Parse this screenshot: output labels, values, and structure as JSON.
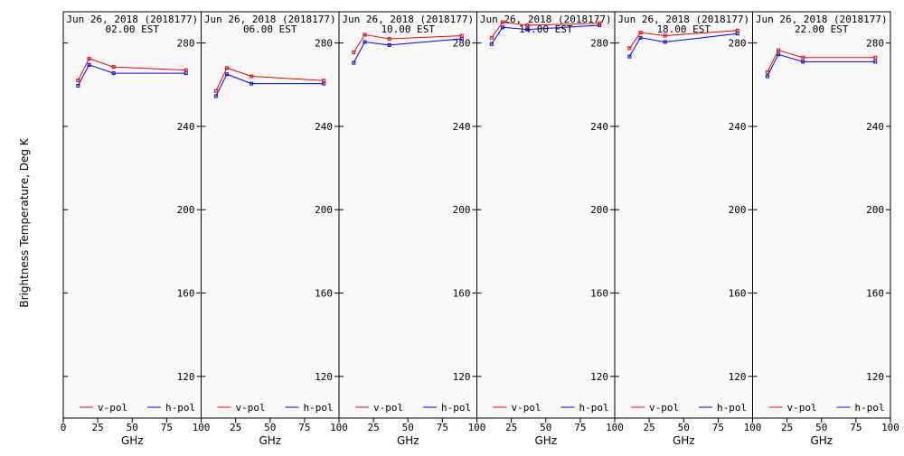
{
  "chart_data": {
    "type": "line",
    "ylabel": "Brightness Temperature, Deg K",
    "xlabel": "GHz",
    "xlim": [
      0,
      100
    ],
    "ylim": [
      100,
      295
    ],
    "xticks": [
      0,
      25,
      50,
      75,
      100
    ],
    "yticks": [
      120,
      160,
      200,
      240,
      280
    ],
    "x_tick_labels": [
      "0",
      "25",
      "50",
      "75",
      "100"
    ],
    "y_tick_labels": [
      "120",
      "160",
      "200",
      "240",
      "280"
    ],
    "legend_placement": "bottom",
    "colors": {
      "v-pol": "#ff0000",
      "h-pol": "#0000ff",
      "background": "#fafafa"
    },
    "panels": [
      {
        "title_line1": "Jun 26, 2018 (2018177)",
        "title_line2": "02.00 EST",
        "x_tick_labels": [
          "0",
          "25",
          "50",
          "75",
          "100"
        ],
        "series": [
          {
            "name": "v-pol",
            "x": [
              10.7,
              18.7,
              36.5,
              89.0
            ],
            "y": [
              262,
              272.5,
              268.5,
              267
            ]
          },
          {
            "name": "h-pol",
            "x": [
              10.7,
              18.7,
              36.5,
              89.0
            ],
            "y": [
              259.5,
              269.5,
              265.5,
              265.5
            ]
          }
        ]
      },
      {
        "title_line1": "Jun 26, 2018 (2018177)",
        "title_line2": "06.00 EST",
        "x_tick_labels": [
          "25",
          "50",
          "75",
          "100"
        ],
        "series": [
          {
            "name": "v-pol",
            "x": [
              10.7,
              18.7,
              36.5,
              89.0
            ],
            "y": [
              257,
              268,
              264,
              262
            ]
          },
          {
            "name": "h-pol",
            "x": [
              10.7,
              18.7,
              36.5,
              89.0
            ],
            "y": [
              254.5,
              265,
              260.5,
              260.5
            ]
          }
        ]
      },
      {
        "title_line1": "Jun 26, 2018 (2018177)",
        "title_line2": "10.00 EST",
        "x_tick_labels": [
          "25",
          "50",
          "75",
          "100"
        ],
        "series": [
          {
            "name": "v-pol",
            "x": [
              10.7,
              18.7,
              36.5,
              89.0
            ],
            "y": [
              275.5,
              284,
              282,
              283.5
            ]
          },
          {
            "name": "h-pol",
            "x": [
              10.7,
              18.7,
              36.5,
              89.0
            ],
            "y": [
              270.5,
              280.5,
              279,
              282
            ]
          }
        ]
      },
      {
        "title_line1": "Jun 26, 2018 (2018177)",
        "title_line2": "14.00 EST",
        "x_tick_labels": [
          "25",
          "50",
          "75",
          "100"
        ],
        "series": [
          {
            "name": "v-pol",
            "x": [
              10.7,
              18.7,
              36.5,
              89.0
            ],
            "y": [
              282.5,
              290,
              288.5,
              289.5
            ]
          },
          {
            "name": "h-pol",
            "x": [
              10.7,
              18.7,
              36.5,
              89.0
            ],
            "y": [
              279.5,
              287.5,
              286.5,
              288.5
            ]
          }
        ]
      },
      {
        "title_line1": "Jun 26, 2018 (2018177)",
        "title_line2": "18.00 EST",
        "x_tick_labels": [
          "25",
          "50",
          "75",
          "100"
        ],
        "series": [
          {
            "name": "v-pol",
            "x": [
              10.7,
              18.7,
              36.5,
              89.0
            ],
            "y": [
              277.5,
              285,
              283.5,
              286
            ]
          },
          {
            "name": "h-pol",
            "x": [
              10.7,
              18.7,
              36.5,
              89.0
            ],
            "y": [
              273.5,
              282.5,
              280.5,
              284.5
            ]
          }
        ]
      },
      {
        "title_line1": "Jun 26, 2018 (2018177)",
        "title_line2": "22.00 EST",
        "x_tick_labels": [
          "25",
          "50",
          "75",
          "100"
        ],
        "series": [
          {
            "name": "v-pol",
            "x": [
              10.7,
              18.7,
              36.5,
              89.0
            ],
            "y": [
              266,
              276.5,
              273,
              273
            ]
          },
          {
            "name": "h-pol",
            "x": [
              10.7,
              18.7,
              36.5,
              89.0
            ],
            "y": [
              264,
              274.5,
              271,
              271
            ]
          }
        ]
      }
    ]
  }
}
